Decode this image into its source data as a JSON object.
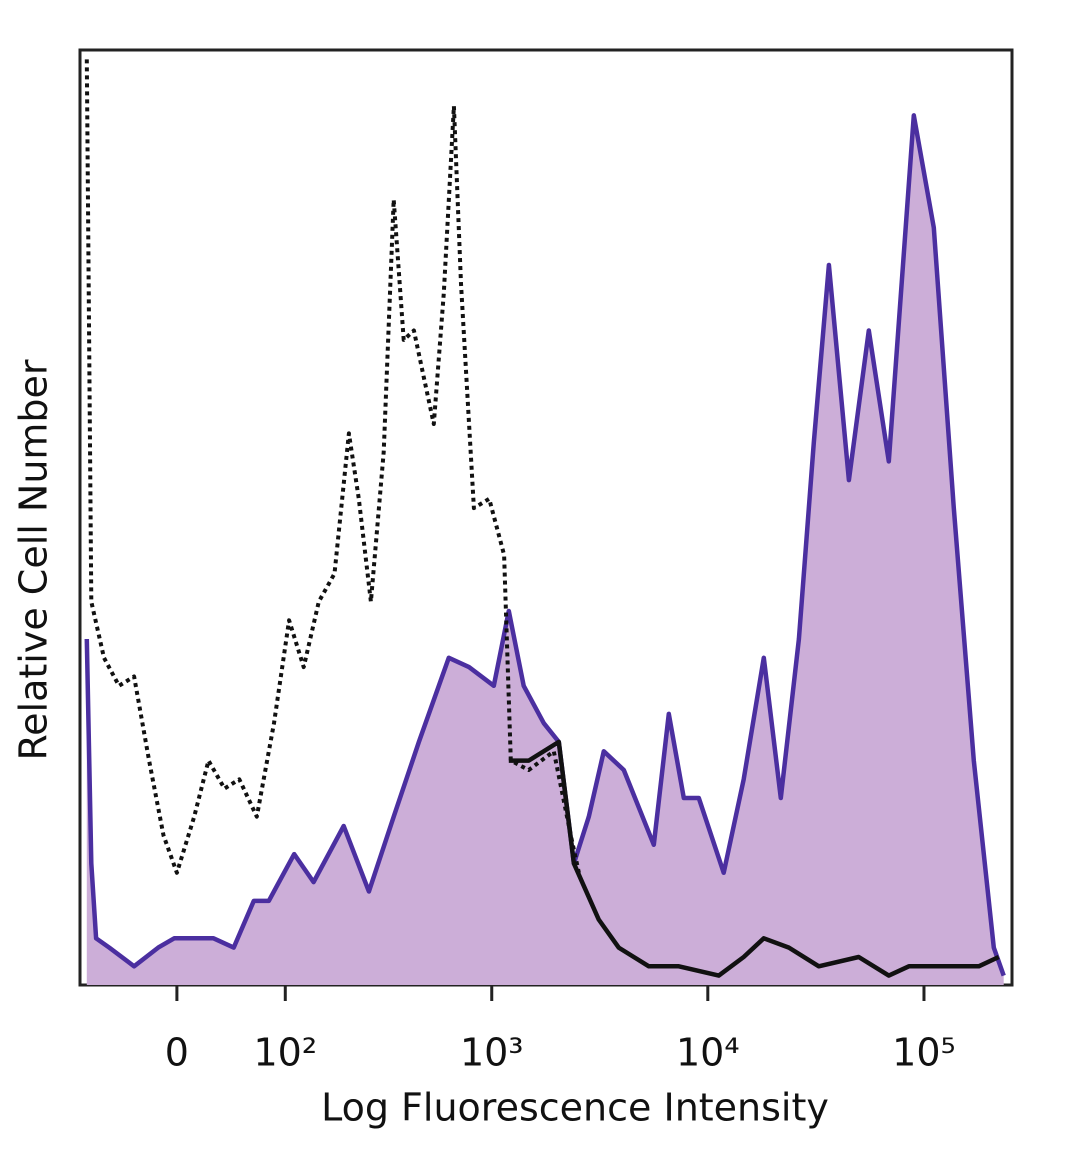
{
  "chart_data": {
    "type": "histogram-overlay",
    "xlabel": "Log Fluorescence Intensity",
    "ylabel": "Relative Cell Number",
    "xscale": "asinh",
    "xlim": [
      -80,
      250000
    ],
    "ylim": [
      0,
      100
    ],
    "xticks": [
      0,
      {
        "value": 100,
        "label": "10²"
      },
      {
        "value": 1000,
        "label": "10³"
      },
      {
        "value": 10000,
        "label": "10⁴"
      },
      {
        "value": 100000,
        "label": "10⁵"
      }
    ],
    "series": [
      {
        "color": "#4b2fa0",
        "fill": "#ccaed8",
        "style": "solid",
        "x": [
          -78,
          -73,
          -68,
          -55,
          -33,
          -14,
          -2,
          17,
          28,
          45,
          64,
          80,
          112,
          142,
          201,
          266,
          349,
          458,
          632,
          784,
          1022,
          1200,
          1407,
          1743,
          2044,
          2401,
          2814,
          3304,
          4088,
          5628,
          6601,
          7742,
          9086,
          11851,
          14665,
          18151,
          21770,
          26390,
          30940,
          36330,
          44940,
          55580,
          68740,
          89740,
          111020,
          137340,
          169960,
          210280,
          233800
        ],
        "values": [
          37,
          13,
          5,
          4,
          2,
          4,
          5,
          5,
          5,
          4,
          9,
          9,
          14,
          11,
          17,
          10,
          18,
          26,
          35,
          34,
          32,
          40,
          32,
          28,
          26,
          13,
          18,
          25,
          23,
          15,
          29,
          20,
          20,
          12,
          22,
          35,
          20,
          37,
          58,
          77,
          54,
          70,
          56,
          93,
          81,
          51,
          24,
          4,
          1
        ]
      },
      {
        "color": "#111111",
        "style": "solid",
        "x": [
          1200,
          1484,
          2044,
          2401,
          3129,
          3871,
          5334,
          7343,
          11242,
          14665,
          18151,
          23730,
          32620,
          49910,
          68740,
          85120,
          130340,
          179270,
          221760
        ],
        "values": [
          24,
          24,
          26,
          13,
          7,
          4,
          2,
          2,
          1,
          3,
          5,
          4,
          2,
          3,
          1,
          2,
          2,
          2,
          3
        ]
      },
      {
        "color": "#111111",
        "style": "dotted",
        "x": [
          -78,
          -73,
          -60,
          -46,
          -33,
          -21,
          -10,
          0,
          13,
          24,
          37,
          50,
          67,
          86,
          105,
          126,
          151,
          181,
          213,
          238,
          272,
          313,
          349,
          389,
          434,
          483,
          538,
          599,
          667,
          720,
          826,
          973,
          1141,
          1225,
          1484,
          1939,
          2324,
          2534
        ],
        "values": [
          99,
          41,
          35,
          32,
          33,
          24,
          16,
          12,
          18,
          24,
          21,
          22,
          18,
          28,
          39,
          34,
          41,
          44,
          59,
          52,
          41,
          57,
          84,
          69,
          70,
          65,
          60,
          74,
          94,
          75,
          51,
          52,
          46,
          24,
          23,
          25,
          16,
          12
        ]
      }
    ]
  }
}
